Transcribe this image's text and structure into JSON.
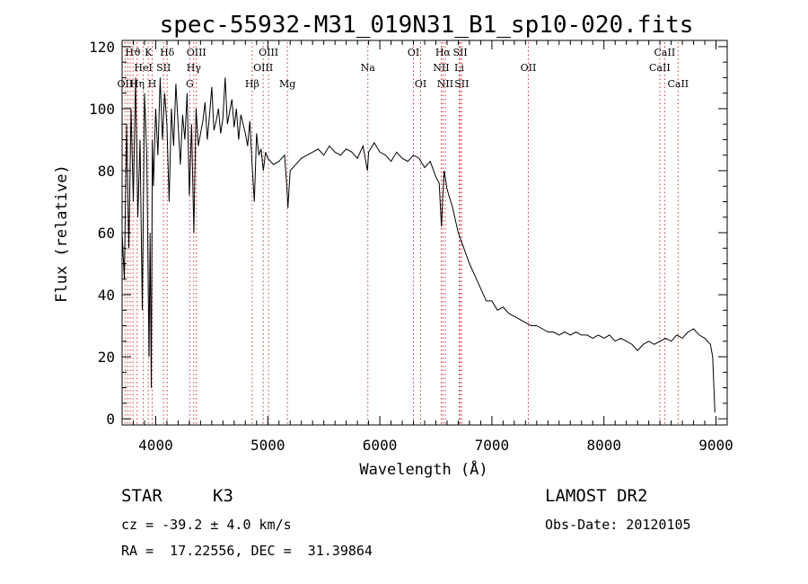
{
  "chart_data": {
    "type": "line",
    "title": "spec-55932-M31_019N31_B1_sp10-020.fits",
    "xlabel": "Wavelength (Å)",
    "ylabel": "Flux (relative)",
    "xlim": [
      3700,
      9100
    ],
    "ylim": [
      -2,
      122
    ],
    "xticks": [
      4000,
      5000,
      6000,
      7000,
      8000,
      9000
    ],
    "yticks": [
      0,
      20,
      40,
      60,
      80,
      100,
      120
    ],
    "grid": false,
    "series": [
      {
        "x": [
          3700,
          3720,
          3740,
          3760,
          3780,
          3800,
          3820,
          3840,
          3860,
          3880,
          3900,
          3920,
          3940,
          3950,
          3960,
          3970,
          3980,
          4000,
          4020,
          4040,
          4060,
          4080,
          4100,
          4120,
          4140,
          4160,
          4180,
          4200,
          4220,
          4240,
          4260,
          4280,
          4300,
          4320,
          4340,
          4360,
          4380,
          4400,
          4420,
          4440,
          4460,
          4480,
          4500,
          4520,
          4540,
          4560,
          4580,
          4600,
          4620,
          4640,
          4660,
          4680,
          4700,
          4720,
          4740,
          4760,
          4780,
          4800,
          4820,
          4840,
          4860,
          4880,
          4900,
          4920,
          4940,
          4960,
          4980,
          5000,
          5050,
          5100,
          5150,
          5170,
          5180,
          5200,
          5250,
          5300,
          5350,
          5400,
          5450,
          5500,
          5550,
          5600,
          5650,
          5700,
          5750,
          5800,
          5850,
          5890,
          5900,
          5950,
          6000,
          6050,
          6100,
          6150,
          6200,
          6250,
          6300,
          6350,
          6400,
          6450,
          6500,
          6530,
          6550,
          6563,
          6575,
          6600,
          6650,
          6700,
          6750,
          6800,
          6850,
          6900,
          6950,
          7000,
          7050,
          7100,
          7150,
          7200,
          7250,
          7300,
          7350,
          7400,
          7450,
          7500,
          7550,
          7600,
          7650,
          7700,
          7750,
          7800,
          7850,
          7900,
          7950,
          8000,
          8050,
          8100,
          8150,
          8200,
          8250,
          8300,
          8350,
          8400,
          8450,
          8500,
          8550,
          8600,
          8650,
          8700,
          8750,
          8800,
          8850,
          8900,
          8950,
          8970,
          8990
        ],
        "y": [
          60,
          45,
          95,
          55,
          100,
          70,
          110,
          65,
          90,
          35,
          105,
          85,
          20,
          60,
          10,
          90,
          75,
          100,
          85,
          110,
          90,
          105,
          95,
          70,
          100,
          88,
          108,
          95,
          82,
          98,
          90,
          105,
          72,
          95,
          60,
          100,
          88,
          92,
          96,
          102,
          90,
          98,
          107,
          93,
          96,
          100,
          92,
          97,
          110,
          95,
          99,
          103,
          94,
          100,
          90,
          98,
          95,
          92,
          88,
          96,
          82,
          70,
          92,
          85,
          87,
          80,
          86,
          84,
          82,
          83,
          85,
          75,
          68,
          80,
          82,
          84,
          85,
          86,
          87,
          85,
          88,
          86,
          85,
          87,
          86,
          84,
          88,
          80,
          86,
          89,
          86,
          85,
          83,
          86,
          84,
          83,
          85,
          84,
          81,
          83,
          78,
          76,
          62,
          72,
          80,
          74,
          68,
          60,
          55,
          50,
          46,
          42,
          38,
          38,
          35,
          36,
          34,
          33,
          32,
          31,
          30,
          30,
          29,
          28,
          28,
          27,
          28,
          27,
          28,
          27,
          27,
          26,
          27,
          26,
          27,
          25,
          26,
          25,
          24,
          22,
          24,
          25,
          24,
          25,
          26,
          25,
          27,
          26,
          28,
          29,
          27,
          26,
          24,
          20,
          2
        ]
      }
    ],
    "line_ids": [
      {
        "label": "Hϑ",
        "x": 3797,
        "row": 1
      },
      {
        "label": "K",
        "x": 3934,
        "row": 1
      },
      {
        "label": "Hδ",
        "x": 4102,
        "row": 1
      },
      {
        "label": "OIII",
        "x": 4363,
        "row": 1
      },
      {
        "label": "OIII",
        "x": 5007,
        "row": 1
      },
      {
        "label": "OI",
        "x": 6300,
        "row": 1
      },
      {
        "label": "Hα",
        "x": 6563,
        "row": 1
      },
      {
        "label": "SII",
        "x": 6717,
        "row": 1
      },
      {
        "label": "CaII",
        "x": 8542,
        "row": 1
      },
      {
        "label": "HeI",
        "x": 3889,
        "row": 2
      },
      {
        "label": "SII",
        "x": 4070,
        "row": 2
      },
      {
        "label": "Hγ",
        "x": 4340,
        "row": 2
      },
      {
        "label": "OIII",
        "x": 4959,
        "row": 2
      },
      {
        "label": "Na",
        "x": 5893,
        "row": 2
      },
      {
        "label": "NII",
        "x": 6548,
        "row": 2
      },
      {
        "label": "Li",
        "x": 6708,
        "row": 2
      },
      {
        "label": "OII",
        "x": 7325,
        "row": 2
      },
      {
        "label": "CaII",
        "x": 8498,
        "row": 2
      },
      {
        "label": "OII",
        "x": 3727,
        "row": 3
      },
      {
        "label": "Hη",
        "x": 3835,
        "row": 3
      },
      {
        "label": "H",
        "x": 3969,
        "row": 3
      },
      {
        "label": "G",
        "x": 4304,
        "row": 3
      },
      {
        "label": "Hβ",
        "x": 4861,
        "row": 3
      },
      {
        "label": "Mg",
        "x": 5175,
        "row": 3
      },
      {
        "label": "OI",
        "x": 6364,
        "row": 3
      },
      {
        "label": "NII",
        "x": 6584,
        "row": 3
      },
      {
        "label": "SII",
        "x": 6731,
        "row": 3
      },
      {
        "label": "CaII",
        "x": 8662,
        "row": 3
      }
    ],
    "line_marker_x": [
      3727,
      3750,
      3771,
      3797,
      3835,
      3889,
      3934,
      3969,
      4070,
      4102,
      4304,
      4340,
      4363,
      4861,
      4959,
      5007,
      5175,
      5893,
      6300,
      6364,
      6548,
      6563,
      6584,
      6708,
      6717,
      6731,
      7325,
      8498,
      8542,
      8662
    ]
  },
  "info": {
    "class": "STAR",
    "subclass": "K3",
    "survey": "LAMOST DR2",
    "cz": "cz = -39.2 ± 4.0 km/s",
    "obsdate": "Obs-Date: 20120105",
    "radec": "RA =  17.22556, DEC =  31.39864"
  }
}
